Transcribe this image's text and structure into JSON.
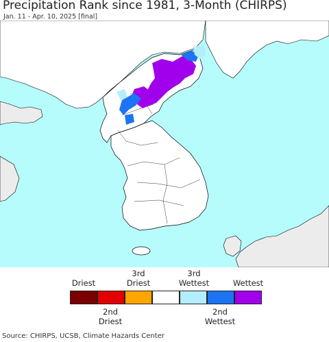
{
  "header": {
    "title": "Precipitation Rank since 1981, 3-Month (CHIRPS)",
    "subtitle": "Jan. 11 - Apr. 10, 2025 [final]"
  },
  "colors": {
    "ocean": "#b6fcfc",
    "land": "#ffffff",
    "other_land": "#ececec",
    "border": "#000000"
  },
  "legend": {
    "top_labels": [
      {
        "text": "Driest"
      },
      {
        "text": "3rd\nDriest"
      },
      {
        "text": "3rd\nWettest"
      },
      {
        "text": "Wettest"
      }
    ],
    "bottom_labels": [
      {
        "text": "2nd\nDriest"
      },
      {
        "text": "2nd\nWettest"
      }
    ],
    "swatches": [
      {
        "name": "driest",
        "color": "#7a0000"
      },
      {
        "name": "2nd-driest",
        "color": "#e00000"
      },
      {
        "name": "3rd-driest",
        "color": "#ffa500"
      },
      {
        "name": "normal",
        "color": "#ffffff"
      },
      {
        "name": "3rd-wettest",
        "color": "#b4eefe"
      },
      {
        "name": "2nd-wettest",
        "color": "#1c74f4"
      },
      {
        "name": "wettest",
        "color": "#a000ec"
      }
    ]
  },
  "footer": {
    "source": "Source: CHIRPS, UCSB, Climate Hazards Center"
  }
}
